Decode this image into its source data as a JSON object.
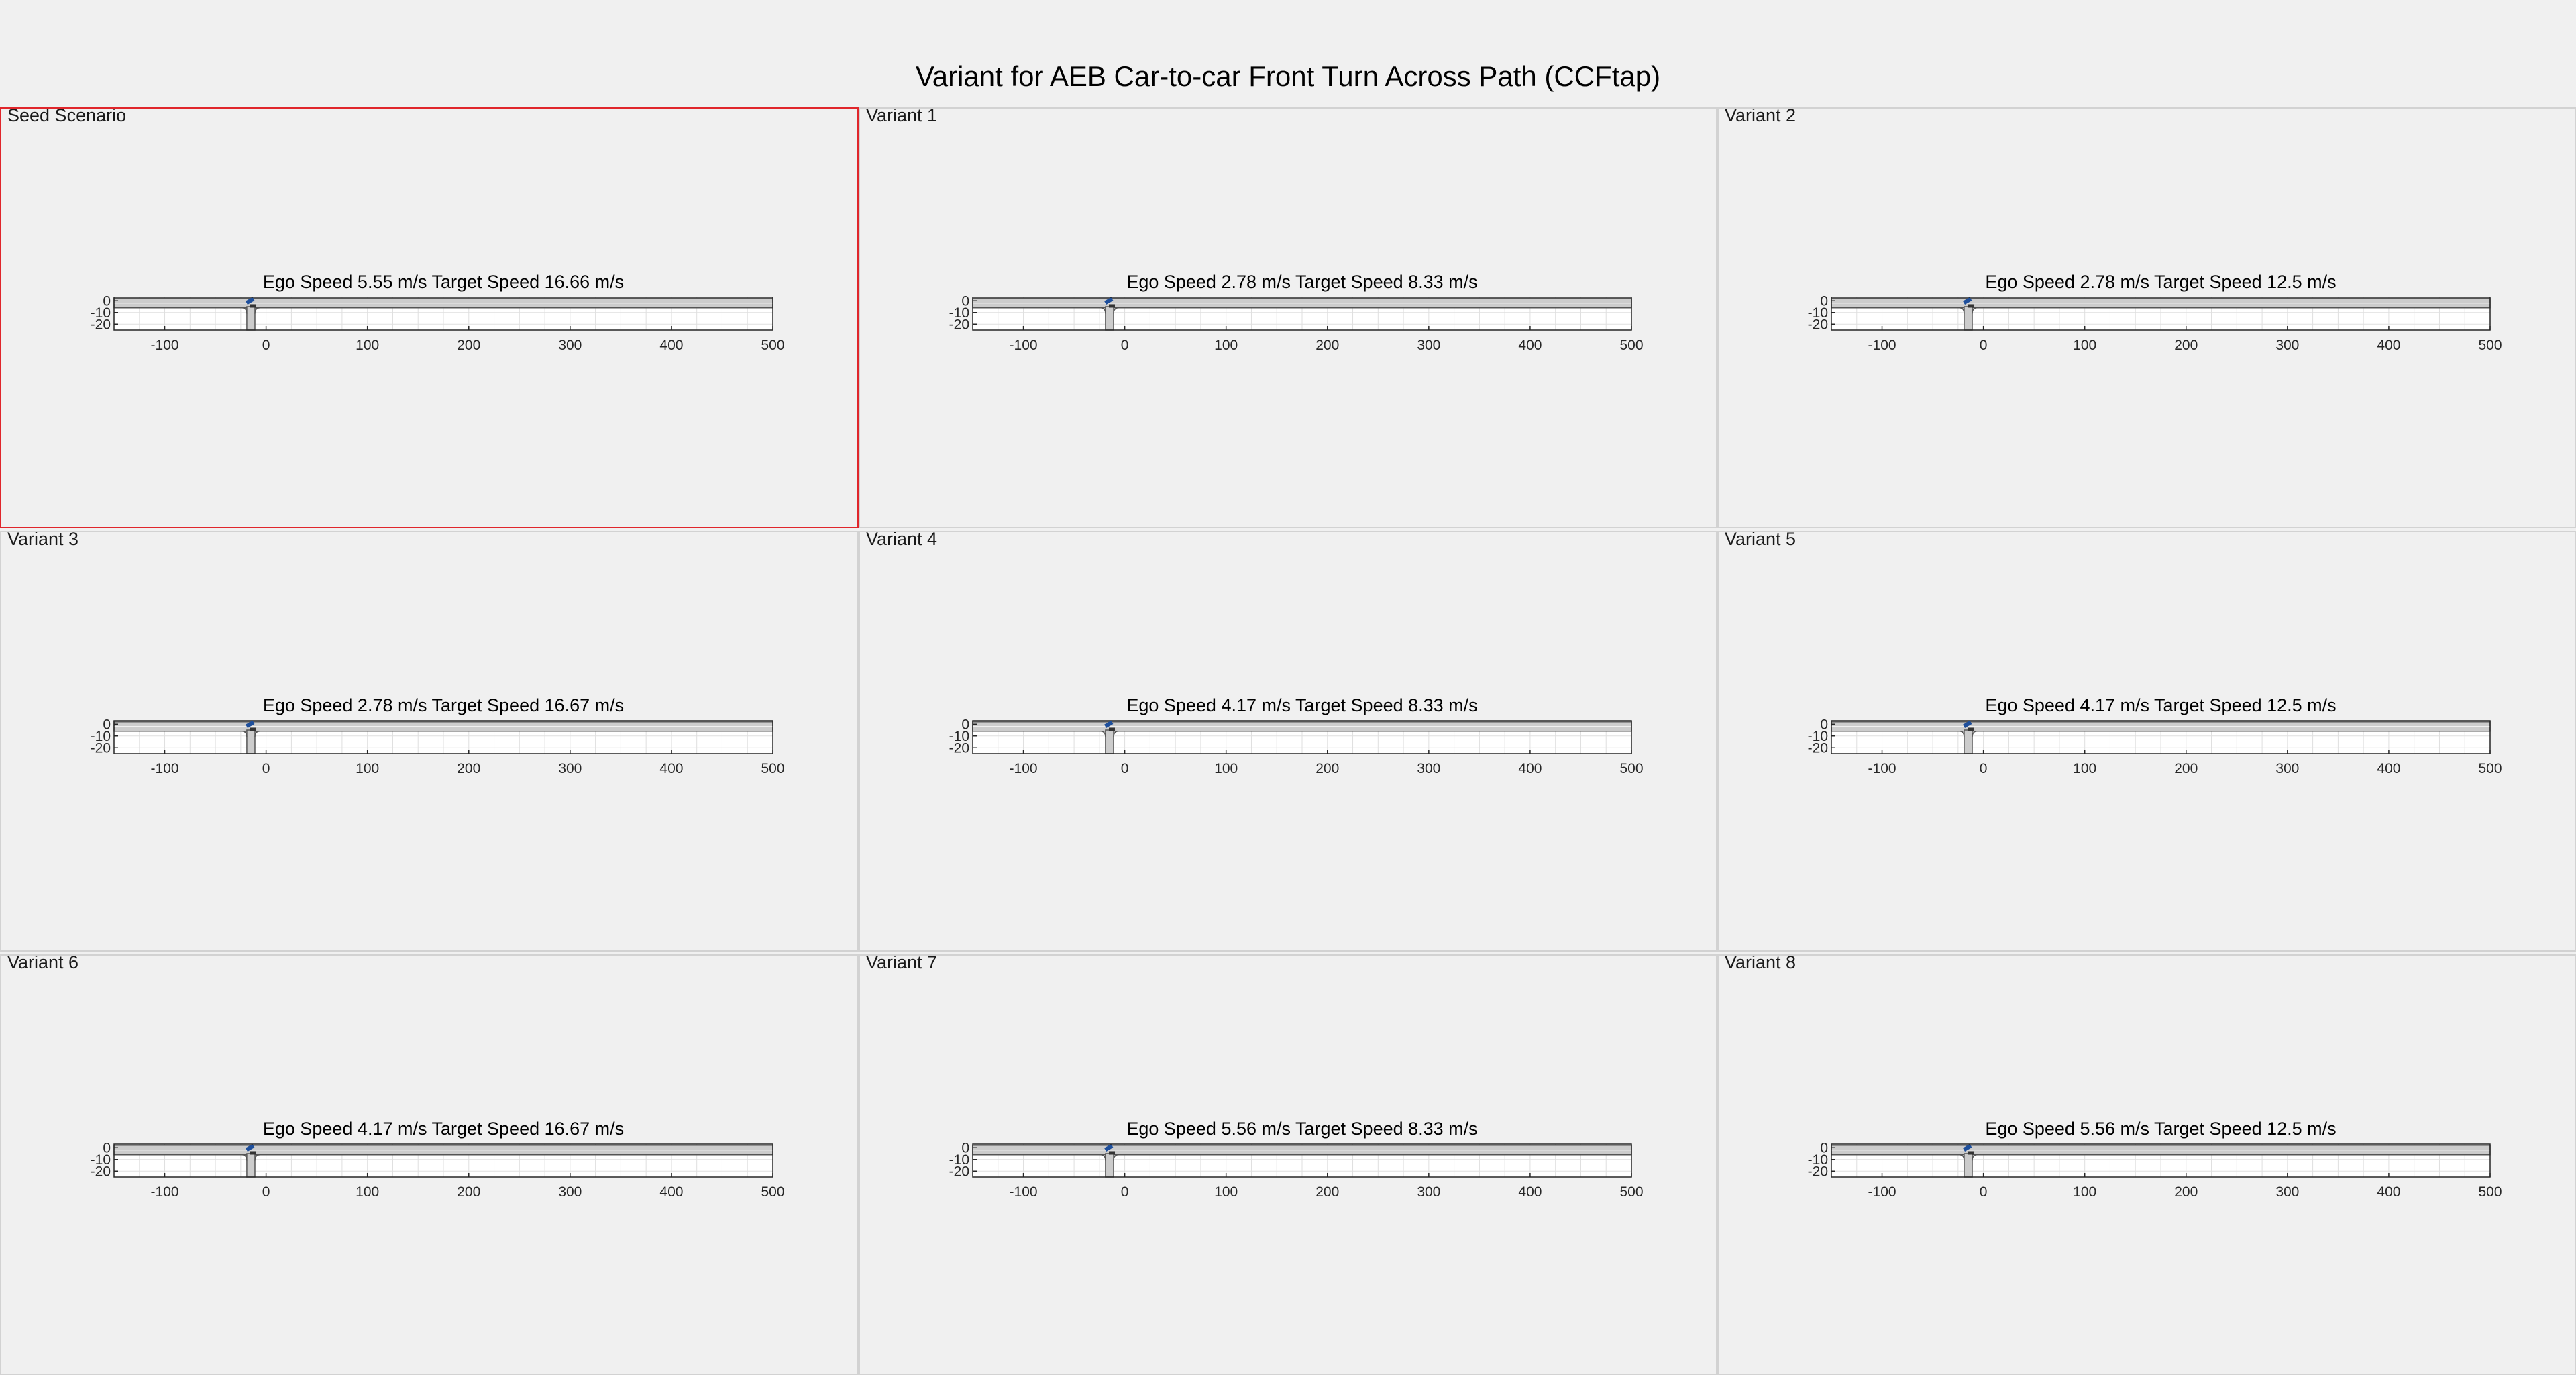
{
  "figure": {
    "title": "Variant for AEB Car-to-car Front Turn Across Path (CCFtap)"
  },
  "axes": {
    "x_ticks": [
      "-100",
      "0",
      "100",
      "200",
      "300",
      "400",
      "500"
    ],
    "y_ticks": [
      "0",
      "-10",
      "-20"
    ]
  },
  "colors": {
    "background": "#f0f0f0",
    "selected_border": "#e0262b",
    "panel_border": "#d2d2d2",
    "road_fill": "#cccccc",
    "road_edge": "#555555"
  },
  "panels": [
    {
      "name": "Seed Scenario",
      "selected": true,
      "plot_title": "Ego Speed 5.55 m/s Target Speed 16.66 m/s"
    },
    {
      "name": "Variant 1",
      "selected": false,
      "plot_title": "Ego Speed 2.78 m/s Target Speed 8.33 m/s"
    },
    {
      "name": "Variant 2",
      "selected": false,
      "plot_title": "Ego Speed 2.78 m/s Target Speed 12.5 m/s"
    },
    {
      "name": "Variant 3",
      "selected": false,
      "plot_title": "Ego Speed 2.78 m/s Target Speed 16.67 m/s"
    },
    {
      "name": "Variant 4",
      "selected": false,
      "plot_title": "Ego Speed 4.17 m/s Target Speed 8.33 m/s"
    },
    {
      "name": "Variant 5",
      "selected": false,
      "plot_title": "Ego Speed 4.17 m/s Target Speed 12.5 m/s"
    },
    {
      "name": "Variant 6",
      "selected": false,
      "plot_title": "Ego Speed 4.17 m/s Target Speed 16.67 m/s"
    },
    {
      "name": "Variant 7",
      "selected": false,
      "plot_title": "Ego Speed 5.56 m/s Target Speed 8.33 m/s"
    },
    {
      "name": "Variant 8",
      "selected": false,
      "plot_title": "Ego Speed 5.56 m/s Target Speed 12.5 m/s"
    }
  ]
}
